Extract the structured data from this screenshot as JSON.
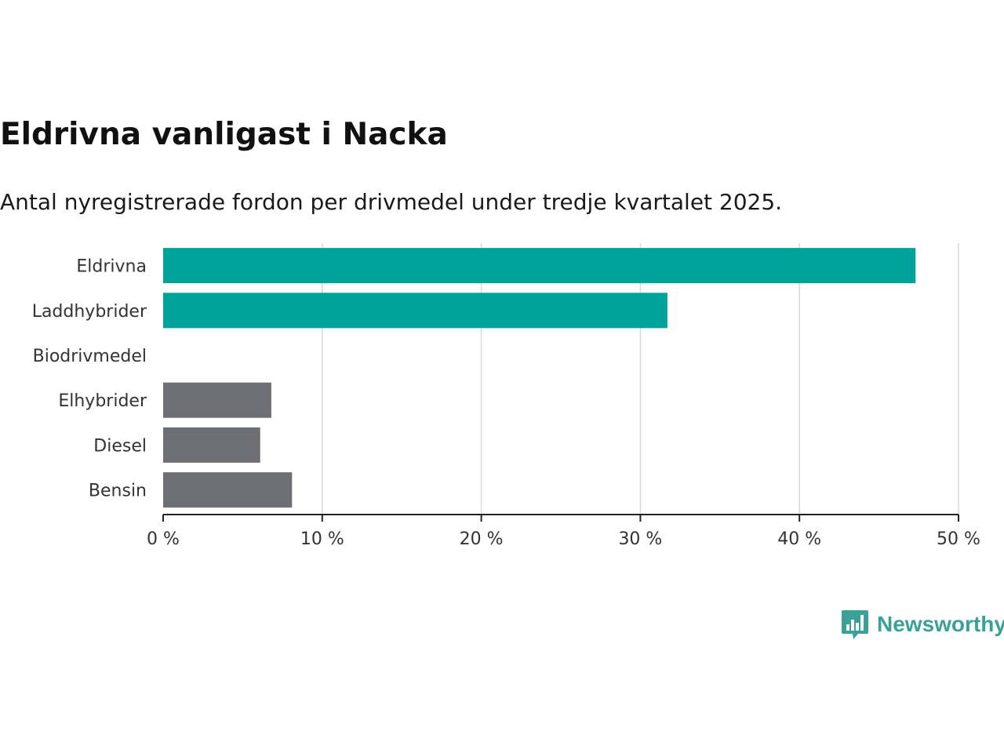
{
  "header": {
    "title": "Eldrivna vanligast i Nacka",
    "subtitle": "Antal nyregistrerade fordon per drivmedel under tredje kvartalet 2025."
  },
  "chart_data": {
    "type": "bar",
    "orientation": "horizontal",
    "categories": [
      "Eldrivna",
      "Laddhybrider",
      "Biodrivmedel",
      "Elhybrider",
      "Diesel",
      "Bensin"
    ],
    "values": [
      47.3,
      31.7,
      0,
      6.8,
      6.1,
      8.1
    ],
    "bar_colors": [
      "#00a39a",
      "#00a39a",
      "#6e6e75",
      "#6e6e75",
      "#6e6e75",
      "#6e6e75"
    ],
    "xlim": [
      0,
      50
    ],
    "xticks": [
      0,
      10,
      20,
      30,
      40,
      50
    ],
    "xtick_labels": [
      "0 %",
      "10 %",
      "20 %",
      "30 %",
      "40 %",
      "50 %"
    ],
    "xlabel": "",
    "ylabel": "",
    "grid": true,
    "gridline_color": "#d9d9d9",
    "axis_color": "#222222"
  },
  "brand": {
    "name": "Newsworthy",
    "icon": "bar-chart-speech-bubble-icon",
    "color": "#3aa198"
  }
}
